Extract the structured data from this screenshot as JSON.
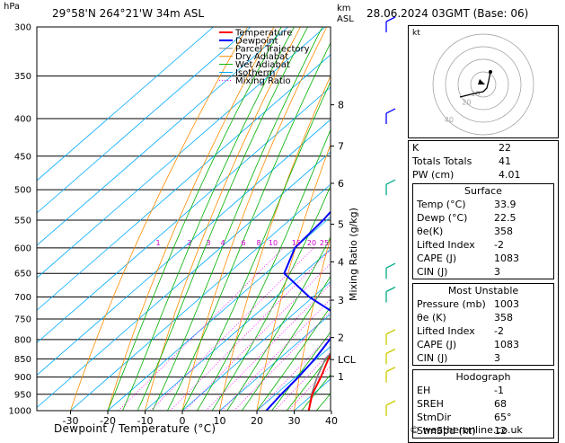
{
  "header": {
    "location": "29°58'N 264°21'W 34m ASL",
    "datetime": "28.06.2024 03GMT (Base: 06)",
    "hpa_unit": "hPa",
    "km_unit": "km",
    "asl_unit": "ASL"
  },
  "footer": "© weatheronline.co.uk",
  "hodograph": {
    "label": "kt",
    "ring_labels": [
      "10",
      "20",
      "40"
    ]
  },
  "chart_data": {
    "type": "line",
    "title": "",
    "xlabel": "Dewpoint / Temperature (°C)",
    "ylabel": "hPa",
    "y_scale": "log-pressure",
    "xlim": [
      -35,
      40
    ],
    "ylim": [
      1000,
      300
    ],
    "pressure_ticks": [
      300,
      350,
      400,
      450,
      500,
      550,
      600,
      650,
      700,
      750,
      800,
      850,
      900,
      950,
      1000
    ],
    "temperature_ticks": [
      -30,
      -20,
      -10,
      0,
      10,
      20,
      30,
      40
    ],
    "km_ticks": [
      {
        "label": "8",
        "p": 383
      },
      {
        "label": "7",
        "p": 436
      },
      {
        "label": "6",
        "p": 490
      },
      {
        "label": "5",
        "p": 557
      },
      {
        "label": "4",
        "p": 627
      },
      {
        "label": "3",
        "p": 707
      },
      {
        "label": "2",
        "p": 795
      },
      {
        "label": "LCL",
        "p": 852
      },
      {
        "label": "1",
        "p": 898
      }
    ],
    "mixing_ratio_axis_label": "Mixing Ratio (g/kg)",
    "mixing_ratio_labels": [
      "1",
      "2",
      "3",
      "4",
      "6",
      "8",
      "10",
      "15",
      "20",
      "25"
    ],
    "legend": {
      "placement": "top-left",
      "entries": [
        {
          "name": "Temperature",
          "color": "#ff0000",
          "style": "solid"
        },
        {
          "name": "Dewpoint",
          "color": "#0000ff",
          "style": "solid"
        },
        {
          "name": "Parcel Trajectory",
          "color": "#808080",
          "style": "solid"
        },
        {
          "name": "Dry Adiabat",
          "color": "#ff8c00",
          "style": "solid"
        },
        {
          "name": "Wet Adiabat",
          "color": "#00b000",
          "style": "solid"
        },
        {
          "name": "Isotherm",
          "color": "#00aaff",
          "style": "solid"
        },
        {
          "name": "Mixing Ratio",
          "color": "#ff00ff",
          "style": "dotted"
        }
      ]
    },
    "series": [
      {
        "name": "Temperature",
        "points": [
          [
            1000,
            33.9
          ],
          [
            950,
            29.8
          ],
          [
            900,
            26.8
          ],
          [
            850,
            23.2
          ],
          [
            800,
            20.4
          ],
          [
            750,
            17.6
          ],
          [
            700,
            14.6
          ],
          [
            650,
            11.6
          ],
          [
            600,
            8.0
          ],
          [
            550,
            4.4
          ],
          [
            500,
            0.2
          ],
          [
            450,
            -4.4
          ],
          [
            400,
            -10.0
          ],
          [
            350,
            -16.8
          ]
        ]
      },
      {
        "name": "Dewpoint",
        "points": [
          [
            1000,
            22.5
          ],
          [
            950,
            21.5
          ],
          [
            900,
            20.8
          ],
          [
            850,
            19.6
          ],
          [
            800,
            17.6
          ],
          [
            750,
            15.0
          ],
          [
            700,
            -1.0
          ],
          [
            650,
            -15.0
          ],
          [
            600,
            -20.0
          ],
          [
            550,
            -21.0
          ],
          [
            500,
            -23.0
          ],
          [
            450,
            -34.0
          ],
          [
            400,
            -30.0
          ],
          [
            350,
            -25.0
          ],
          [
            300,
            -33.0
          ]
        ]
      },
      {
        "name": "Parcel Trajectory",
        "points": [
          [
            1000,
            33.9
          ],
          [
            950,
            29.6
          ],
          [
            900,
            25.8
          ],
          [
            850,
            22.4
          ],
          [
            800,
            21.4
          ],
          [
            750,
            20.2
          ],
          [
            700,
            18.8
          ],
          [
            650,
            17.2
          ],
          [
            600,
            15.2
          ],
          [
            550,
            12.8
          ],
          [
            500,
            9.8
          ],
          [
            450,
            6.0
          ],
          [
            400,
            0.8
          ],
          [
            350,
            -6.0
          ]
        ]
      }
    ],
    "wind_barbs": [
      {
        "p": 300,
        "color": "#0000ff"
      },
      {
        "p": 400,
        "color": "#0000ff"
      },
      {
        "p": 500,
        "color": "#00aa88"
      },
      {
        "p": 650,
        "color": "#00aa88"
      },
      {
        "p": 700,
        "color": "#00aa88"
      },
      {
        "p": 800,
        "color": "#cccc00"
      },
      {
        "p": 850,
        "color": "#cccc00"
      },
      {
        "p": 900,
        "color": "#cccc00"
      },
      {
        "p": 1000,
        "color": "#cccc00"
      }
    ]
  },
  "indices": {
    "top": [
      {
        "label": "K",
        "value": "22"
      },
      {
        "label": "Totals Totals",
        "value": "41"
      },
      {
        "label": "PW (cm)",
        "value": "4.01"
      }
    ],
    "surface": {
      "title": "Surface",
      "rows": [
        {
          "label": "Temp (°C)",
          "value": "33.9"
        },
        {
          "label": "Dewp (°C)",
          "value": "22.5"
        },
        {
          "label": "θe(K)",
          "value": "358"
        },
        {
          "label": "Lifted Index",
          "value": "-2"
        },
        {
          "label": "CAPE (J)",
          "value": "1083"
        },
        {
          "label": "CIN (J)",
          "value": "3"
        }
      ]
    },
    "most_unstable": {
      "title": "Most Unstable",
      "rows": [
        {
          "label": "Pressure (mb)",
          "value": "1003"
        },
        {
          "label": "θe (K)",
          "value": "358"
        },
        {
          "label": "Lifted Index",
          "value": "-2"
        },
        {
          "label": "CAPE (J)",
          "value": "1083"
        },
        {
          "label": "CIN (J)",
          "value": "3"
        }
      ]
    },
    "hodograph": {
      "title": "Hodograph",
      "rows": [
        {
          "label": "EH",
          "value": "-1"
        },
        {
          "label": "SREH",
          "value": "68"
        },
        {
          "label": "StmDir",
          "value": "65°"
        },
        {
          "label": "StmSpd (kt)",
          "value": "12"
        }
      ]
    }
  }
}
